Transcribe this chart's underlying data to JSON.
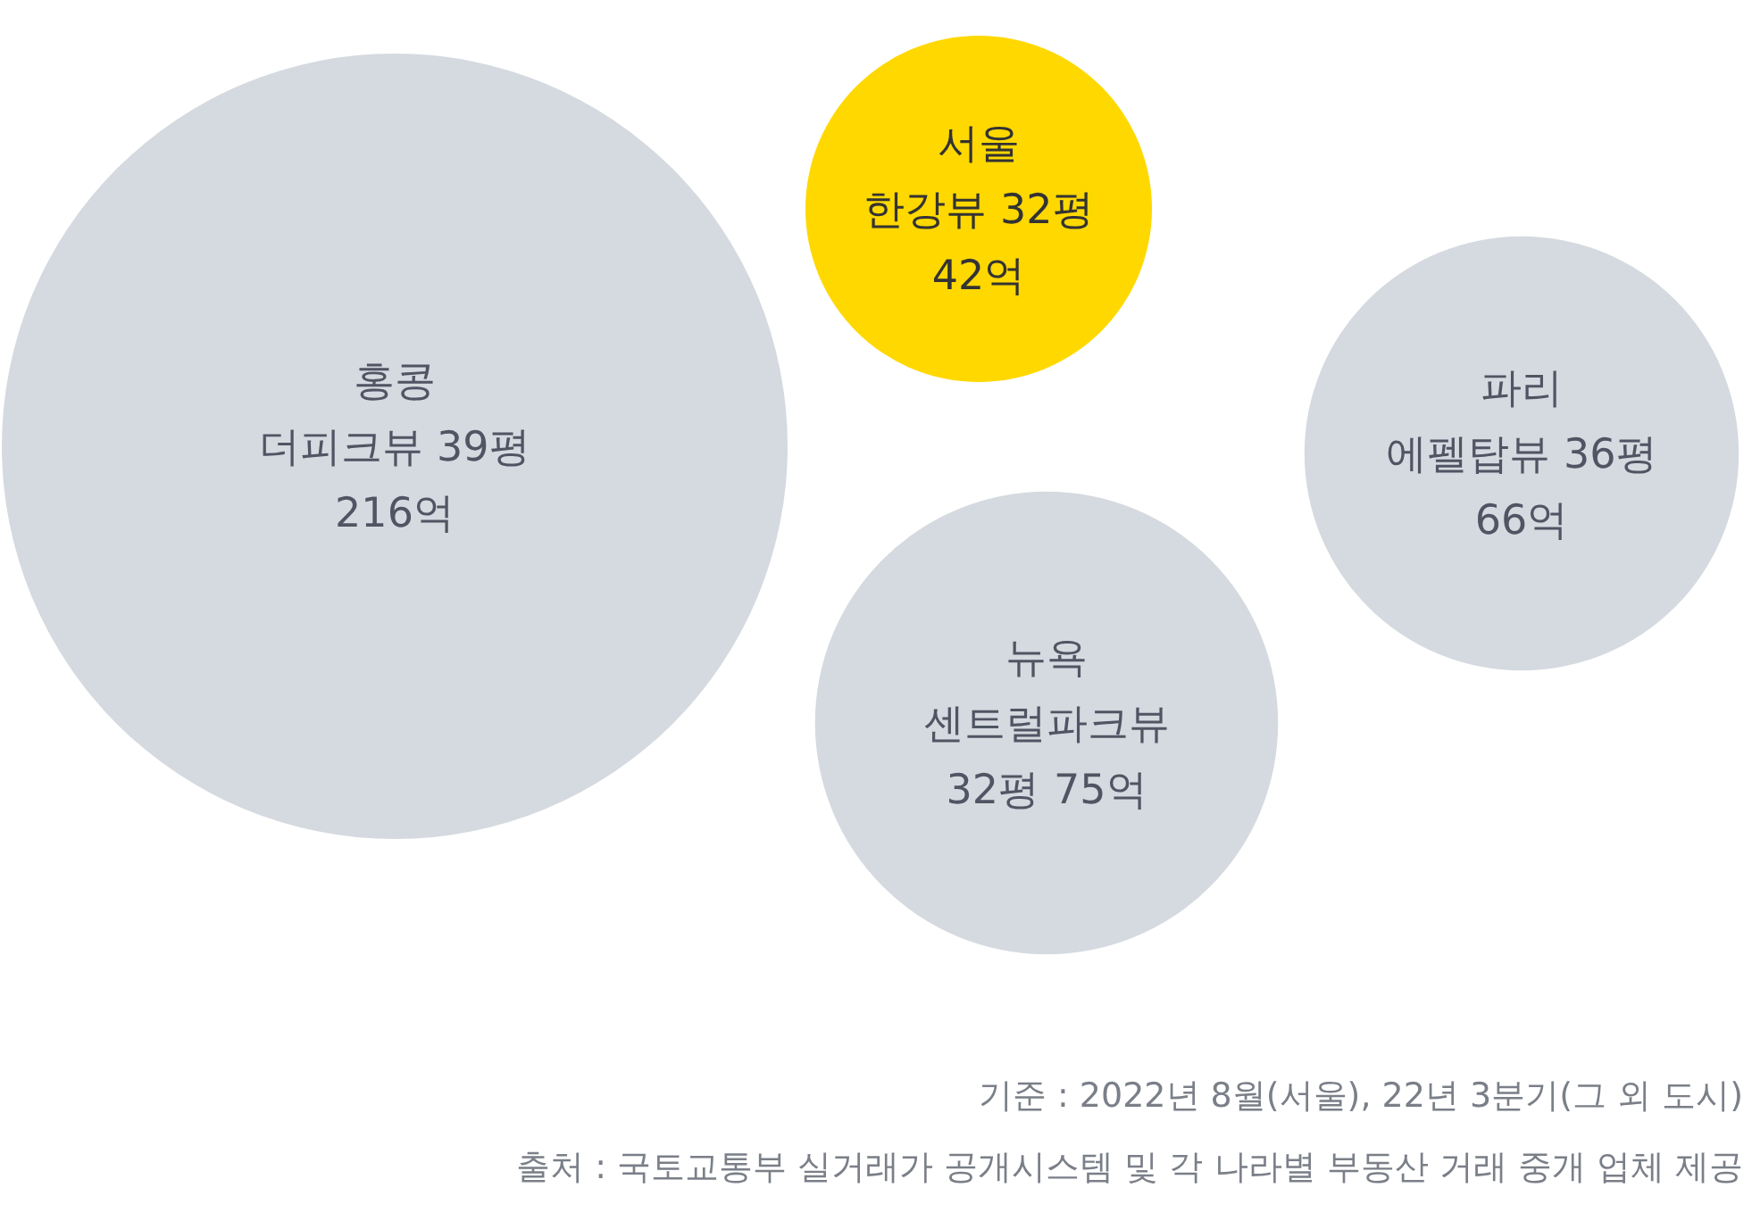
{
  "chart_data": {
    "type": "other",
    "categories": [
      "홍콩\n더피크뷰 39평",
      "서울\n한강뷰 32평",
      "뉴욕\n센트럴파크뷰\n32평",
      "파리\n에펠탑뷰 36평"
    ],
    "values": [
      216,
      42,
      75,
      66
    ],
    "value_labels": [
      "216억",
      "42억",
      "75억",
      "66억"
    ],
    "colors": [
      "#d5dae0",
      "#ffd800",
      "#d5dae0",
      "#d5dae0"
    ],
    "annotations": [
      "기준 : 2022년 8월(서울), 22년 3분기(그 외 도시)",
      "출처 : 국토교통부 실거래가 공개시스템 및 각 나라별 부동산 거래 중개 업체 제공"
    ]
  }
}
